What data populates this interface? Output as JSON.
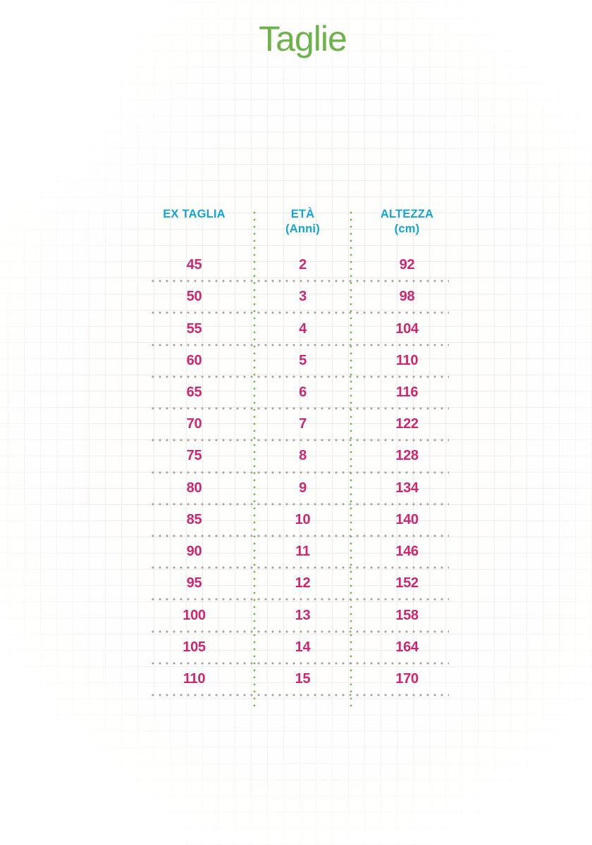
{
  "page": {
    "title": "Taglie"
  },
  "table": {
    "headers": [
      {
        "label": "EX TAGLIA",
        "sub": ""
      },
      {
        "label": "ETÀ",
        "sub": "(Anni)"
      },
      {
        "label": "ALTEZZA",
        "sub": "(cm)"
      }
    ],
    "rows": [
      {
        "ex": "45",
        "eta": "2",
        "alt": "92"
      },
      {
        "ex": "50",
        "eta": "3",
        "alt": "98"
      },
      {
        "ex": "55",
        "eta": "4",
        "alt": "104"
      },
      {
        "ex": "60",
        "eta": "5",
        "alt": "110"
      },
      {
        "ex": "65",
        "eta": "6",
        "alt": "116"
      },
      {
        "ex": "70",
        "eta": "7",
        "alt": "122"
      },
      {
        "ex": "75",
        "eta": "8",
        "alt": "128"
      },
      {
        "ex": "80",
        "eta": "9",
        "alt": "134"
      },
      {
        "ex": "85",
        "eta": "10",
        "alt": "140"
      },
      {
        "ex": "90",
        "eta": "11",
        "alt": "146"
      },
      {
        "ex": "95",
        "eta": "12",
        "alt": "152"
      },
      {
        "ex": "100",
        "eta": "13",
        "alt": "158"
      },
      {
        "ex": "105",
        "eta": "14",
        "alt": "164"
      },
      {
        "ex": "110",
        "eta": "15",
        "alt": "170"
      }
    ]
  },
  "colors": {
    "title_green": "#6cb34a",
    "header_cyan": "#12a5d7",
    "value_pink": "#d3256e",
    "divider_green": "#76b84c",
    "divider_gray": "#a9a7a5"
  }
}
